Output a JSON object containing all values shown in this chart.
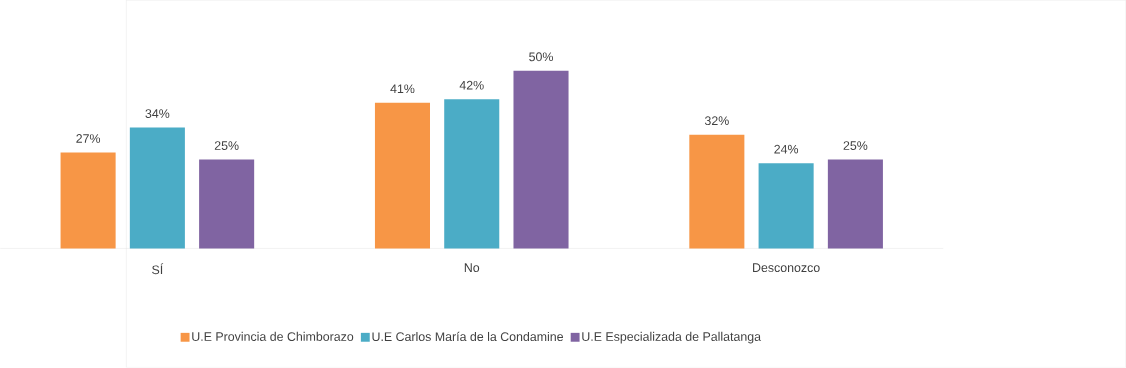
{
  "chart_data": {
    "type": "bar",
    "categories": [
      "SÍ",
      "No",
      "Desconozco"
    ],
    "legend": "bottom",
    "series": [
      {
        "name": "U.E Provincia de Chimborazo",
        "color": "#f79646",
        "values": [
          27,
          41,
          32
        ],
        "value_labels": [
          "27%",
          "41%",
          "32%"
        ]
      },
      {
        "name": "U.E Carlos María de la Condamine",
        "color": "#4bacc6",
        "values": [
          34,
          42,
          24
        ],
        "value_labels": [
          "34%",
          "42%",
          "24%"
        ]
      },
      {
        "name": "U.E Especializada de Pallatanga",
        "color": "#8064a2",
        "values": [
          25,
          50,
          25
        ],
        "value_labels": [
          "25%",
          "50%",
          "25%"
        ]
      }
    ]
  }
}
